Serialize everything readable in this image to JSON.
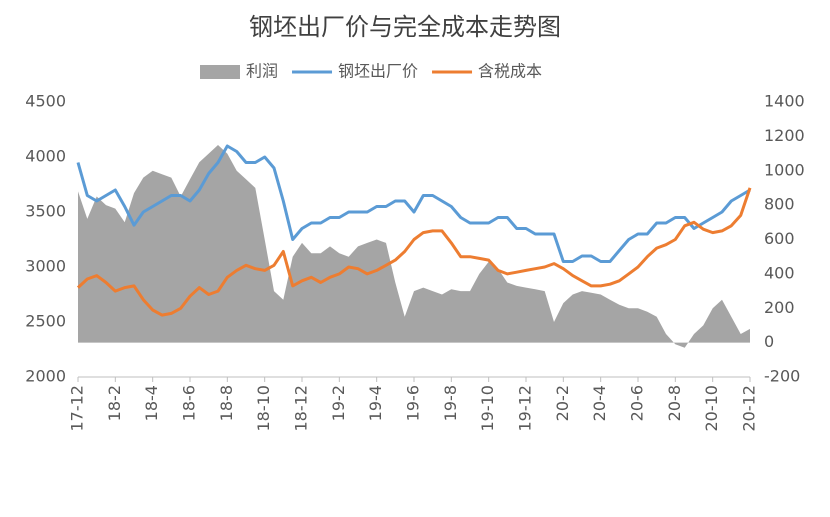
{
  "chart_data": {
    "type": "line",
    "title": "钢坯出厂价与完全成本走势图",
    "categories": [
      "17-12",
      null,
      null,
      null,
      "18-2",
      null,
      null,
      null,
      "18-4",
      null,
      null,
      null,
      "18-6",
      null,
      null,
      null,
      "18-8",
      null,
      null,
      null,
      "18-10",
      null,
      null,
      null,
      "18-12",
      null,
      null,
      null,
      "19-2",
      null,
      null,
      null,
      "19-4",
      null,
      null,
      null,
      "19-6",
      null,
      null,
      null,
      "19-8",
      null,
      null,
      null,
      "19-10",
      null,
      null,
      null,
      "19-12",
      null,
      null,
      null,
      "20-2",
      null,
      null,
      null,
      "20-4",
      null,
      null,
      null,
      "20-6",
      null,
      null,
      null,
      "20-8",
      null,
      null,
      null,
      "20-10",
      null,
      null,
      null,
      "20-12"
    ],
    "series": [
      {
        "name": "利润",
        "type": "area",
        "axis": "y2",
        "color": "#a5a5a5",
        "values": [
          880,
          720,
          850,
          800,
          780,
          700,
          870,
          960,
          1000,
          980,
          960,
          850,
          950,
          1050,
          1100,
          1150,
          1100,
          1000,
          950,
          900,
          600,
          300,
          250,
          500,
          580,
          520,
          520,
          560,
          520,
          500,
          560,
          580,
          600,
          580,
          350,
          150,
          300,
          320,
          300,
          280,
          310,
          300,
          300,
          400,
          470,
          430,
          350,
          330,
          320,
          310,
          300,
          120,
          230,
          280,
          300,
          290,
          280,
          250,
          220,
          200,
          200,
          180,
          150,
          50,
          -10,
          -30,
          50,
          100,
          200,
          250,
          150,
          50,
          80
        ]
      },
      {
        "name": "钢坯出厂价",
        "type": "line",
        "axis": "y",
        "color": "#5b9bd5",
        "values": [
          3950,
          3650,
          3600,
          3650,
          3700,
          3550,
          3380,
          3500,
          3550,
          3600,
          3650,
          3650,
          3600,
          3700,
          3850,
          3950,
          4100,
          4050,
          3950,
          3950,
          4000,
          3900,
          3600,
          3250,
          3350,
          3400,
          3400,
          3450,
          3450,
          3500,
          3500,
          3500,
          3550,
          3550,
          3600,
          3600,
          3500,
          3650,
          3650,
          3600,
          3550,
          3450,
          3400,
          3400,
          3400,
          3450,
          3450,
          3350,
          3350,
          3300,
          3300,
          3300,
          3050,
          3050,
          3100,
          3100,
          3050,
          3050,
          3150,
          3250,
          3300,
          3300,
          3400,
          3400,
          3450,
          3450,
          3350,
          3400,
          3450,
          3500,
          3600,
          3650,
          3700
        ]
      },
      {
        "name": "含税成本",
        "type": "line",
        "axis": "y2",
        "color": "#ed7d31",
        "values": [
          320,
          370,
          390,
          350,
          300,
          320,
          330,
          250,
          190,
          160,
          170,
          200,
          270,
          320,
          280,
          300,
          380,
          420,
          450,
          430,
          420,
          450,
          530,
          330,
          360,
          380,
          350,
          380,
          400,
          440,
          430,
          400,
          420,
          450,
          480,
          530,
          600,
          640,
          650,
          650,
          580,
          500,
          500,
          490,
          480,
          420,
          400,
          410,
          420,
          430,
          440,
          460,
          430,
          390,
          360,
          330,
          330,
          340,
          360,
          400,
          440,
          500,
          550,
          570,
          600,
          680,
          700,
          660,
          640,
          650,
          680,
          740,
          900
        ]
      }
    ],
    "ylim": [
      2000,
      4500
    ],
    "yticks": [
      2000,
      2500,
      3000,
      3500,
      4000,
      4500
    ],
    "y2lim": [
      -200,
      1400
    ],
    "y2ticks": [
      -200,
      0,
      200,
      400,
      600,
      800,
      1000,
      1200,
      1400
    ],
    "legend": "top"
  }
}
